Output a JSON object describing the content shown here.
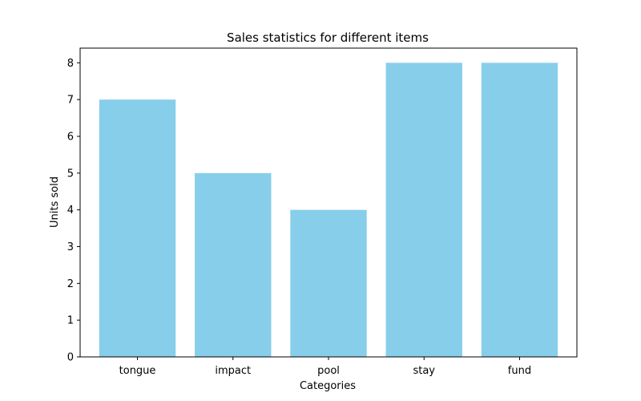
{
  "chart_data": {
    "type": "bar",
    "title": "Sales statistics for different items",
    "xlabel": "Categories",
    "ylabel": "Units sold",
    "categories": [
      "tongue",
      "impact",
      "pool",
      "stay",
      "fund"
    ],
    "values": [
      7,
      5,
      4,
      8,
      8
    ],
    "ylim": [
      0,
      8.4
    ],
    "yticks": [
      0,
      1,
      2,
      3,
      4,
      5,
      6,
      7,
      8
    ],
    "bar_color": "#87ceeb",
    "grid": false,
    "legend": "none"
  }
}
